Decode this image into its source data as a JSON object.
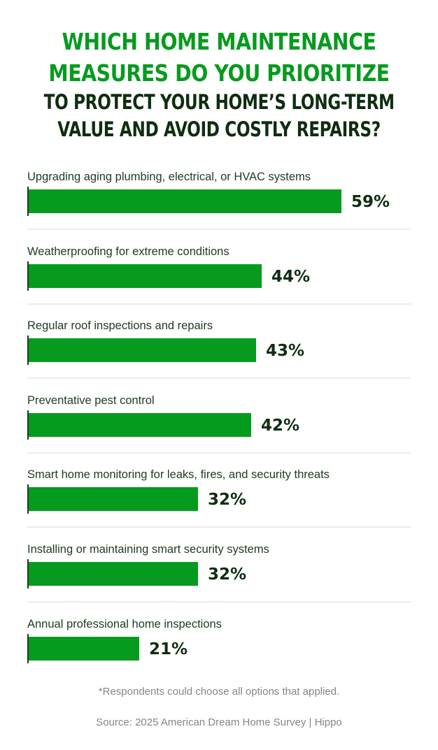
{
  "title": {
    "line1": "WHICH HOME MAINTENANCE",
    "line2": "MEASURES DO YOU PRIORITIZE",
    "line3": "TO PROTECT YOUR HOME’S LONG-TERM",
    "line4": "VALUE AND AVOID COSTLY REPAIRS?"
  },
  "colors": {
    "accent_green": "#069b1e",
    "dark_green": "#0f2d10",
    "muted_gray": "#858585"
  },
  "rows": [
    {
      "label": "Upgrading aging plumbing, electrical, or HVAC systems",
      "value": 59,
      "display": "59%"
    },
    {
      "label": "Weatherproofing for extreme conditions",
      "value": 44,
      "display": "44%"
    },
    {
      "label": "Regular roof inspections and repairs",
      "value": 43,
      "display": "43%"
    },
    {
      "label": "Preventative pest control",
      "value": 42,
      "display": "42%"
    },
    {
      "label": "Smart home monitoring for leaks, fires, and security threats",
      "value": 32,
      "display": "32%"
    },
    {
      "label": "Installing or maintaining smart security systems",
      "value": 32,
      "display": "32%"
    },
    {
      "label": "Annual professional home inspections",
      "value": 21,
      "display": "21%"
    }
  ],
  "footnote": "*Respondents could choose all options that applied.",
  "source": "Source: 2025 American Dream Home Survey | Hippo",
  "chart_data": {
    "type": "bar",
    "orientation": "horizontal",
    "title": "Which home maintenance measures do you prioritize to protect your home’s long-term value and avoid costly repairs?",
    "categories": [
      "Upgrading aging plumbing, electrical, or HVAC systems",
      "Weatherproofing for extreme conditions",
      "Regular roof inspections and repairs",
      "Preventative pest control",
      "Smart home monitoring for leaks, fires, and security threats",
      "Installing or maintaining smart security systems",
      "Annual professional home inspections"
    ],
    "values": [
      59,
      44,
      43,
      42,
      32,
      32,
      21
    ],
    "unit": "%",
    "xlabel": "",
    "ylabel": "",
    "grid": false,
    "legend": null,
    "annotations": [
      "*Respondents could choose all options that applied.",
      "Source: 2025 American Dream Home Survey | Hippo"
    ]
  }
}
